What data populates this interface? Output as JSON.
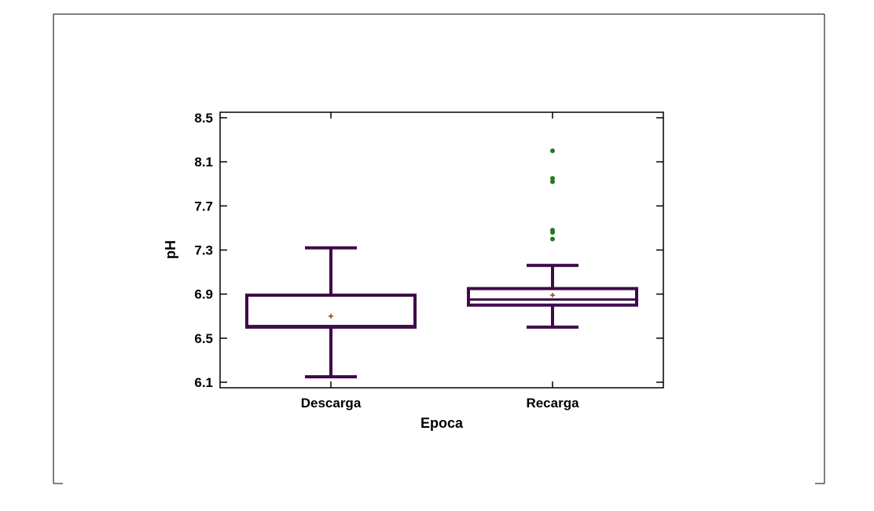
{
  "chart_data": {
    "type": "box",
    "xlabel": "Epoca",
    "ylabel": "pH",
    "ylim": [
      6.05,
      8.55
    ],
    "yticks": [
      6.1,
      6.5,
      6.9,
      7.3,
      7.7,
      8.1,
      8.5
    ],
    "categories": [
      "Descarga",
      "Recarga"
    ],
    "boxes": [
      {
        "category": "Descarga",
        "whisker_low": 6.15,
        "q1": 6.6,
        "median": 6.61,
        "q3": 6.89,
        "whisker_high": 7.32,
        "mean": 6.7,
        "outliers": []
      },
      {
        "category": "Recarga",
        "whisker_low": 6.6,
        "q1": 6.8,
        "median": 6.85,
        "q3": 6.95,
        "whisker_high": 7.16,
        "mean": 6.89,
        "outliers": [
          7.4,
          7.46,
          7.48,
          7.92,
          7.95,
          8.2
        ]
      }
    ],
    "colors": {
      "box": "#3f0a4a",
      "mean_marker": "#8b4513",
      "outlier": "#1f7a1f"
    },
    "grid": false,
    "legend": "none"
  }
}
